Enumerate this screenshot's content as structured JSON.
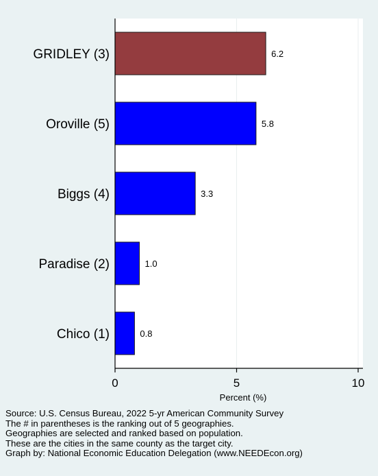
{
  "chart_data": {
    "type": "bar",
    "orientation": "horizontal",
    "title": "",
    "categories": [
      "GRIDLEY (3)",
      "Oroville (5)",
      "Biggs (4)",
      "Paradise (2)",
      "Chico (1)"
    ],
    "values": [
      6.2,
      5.8,
      3.3,
      1.0,
      0.8
    ],
    "value_labels": [
      "6.2",
      "5.8",
      "3.3",
      "1.0",
      "0.8"
    ],
    "highlight": "GRIDLEY (3)",
    "xlabel": "Percent (%)",
    "ylabel": "",
    "xlim": [
      0,
      10
    ],
    "xticks": [
      0,
      5,
      10
    ],
    "xtick_labels": [
      "0",
      "5",
      "10"
    ],
    "grid": true,
    "colors": {
      "highlight": "#943c3f",
      "bar": "#0000ff",
      "background": "#eaf2f3",
      "plot_background": "#ffffff",
      "grid": "#e9eeef"
    }
  },
  "footer": {
    "lines": [
      "Source: U.S. Census Bureau, 2022 5-yr American Community Survey",
      "The # in parentheses is the ranking out of 5 geographies.",
      "Geographies are selected and ranked based on population.",
      "These are the cities in the same county as the target city.",
      "Graph by: National Economic Education Delegation (www.NEEDEcon.org)"
    ]
  }
}
